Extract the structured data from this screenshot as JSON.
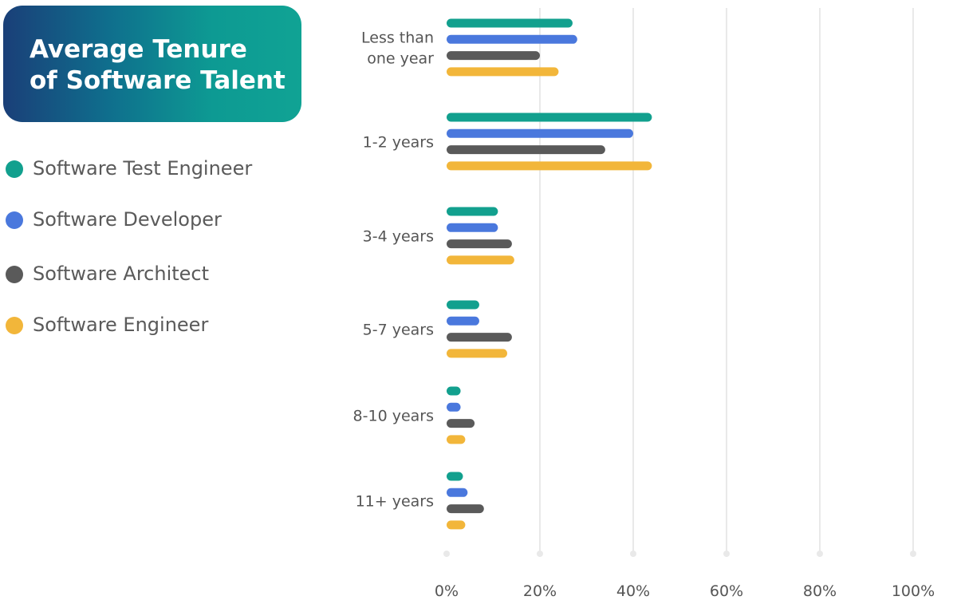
{
  "title": {
    "line1": "Average Tenure",
    "line2": "of Software Talent"
  },
  "colors": {
    "title_gradient_start": "#1a3f78",
    "title_gradient_end": "#10a394",
    "gridline": "#e9e9e9",
    "text": "#555555"
  },
  "chart_data": {
    "type": "bar",
    "orientation": "horizontal",
    "title": "Average Tenure of Software Talent",
    "categories": [
      [
        "Less than",
        "one year"
      ],
      [
        "1-2 years"
      ],
      [
        "3-4 years"
      ],
      [
        "5-7 years"
      ],
      [
        "8-10 years"
      ],
      [
        "11+ years"
      ]
    ],
    "series": [
      {
        "name": "Software Test Engineer",
        "color": "#12a08e",
        "values": [
          27,
          44,
          11,
          7,
          3,
          3.5
        ]
      },
      {
        "name": "Software Developer",
        "color": "#4a78dd",
        "values": [
          28,
          40,
          11,
          7,
          3,
          4.5
        ]
      },
      {
        "name": "Software Architect",
        "color": "#5a5a5a",
        "values": [
          20,
          34,
          14,
          14,
          6,
          8
        ]
      },
      {
        "name": "Software Engineer",
        "color": "#f2b63a",
        "values": [
          24,
          44,
          14.5,
          13,
          4,
          4
        ]
      }
    ],
    "xlim": [
      0,
      100
    ],
    "xticks": [
      "0%",
      "20%",
      "40%",
      "60%",
      "80%",
      "100%"
    ],
    "grid": true,
    "legend_position": "left"
  }
}
